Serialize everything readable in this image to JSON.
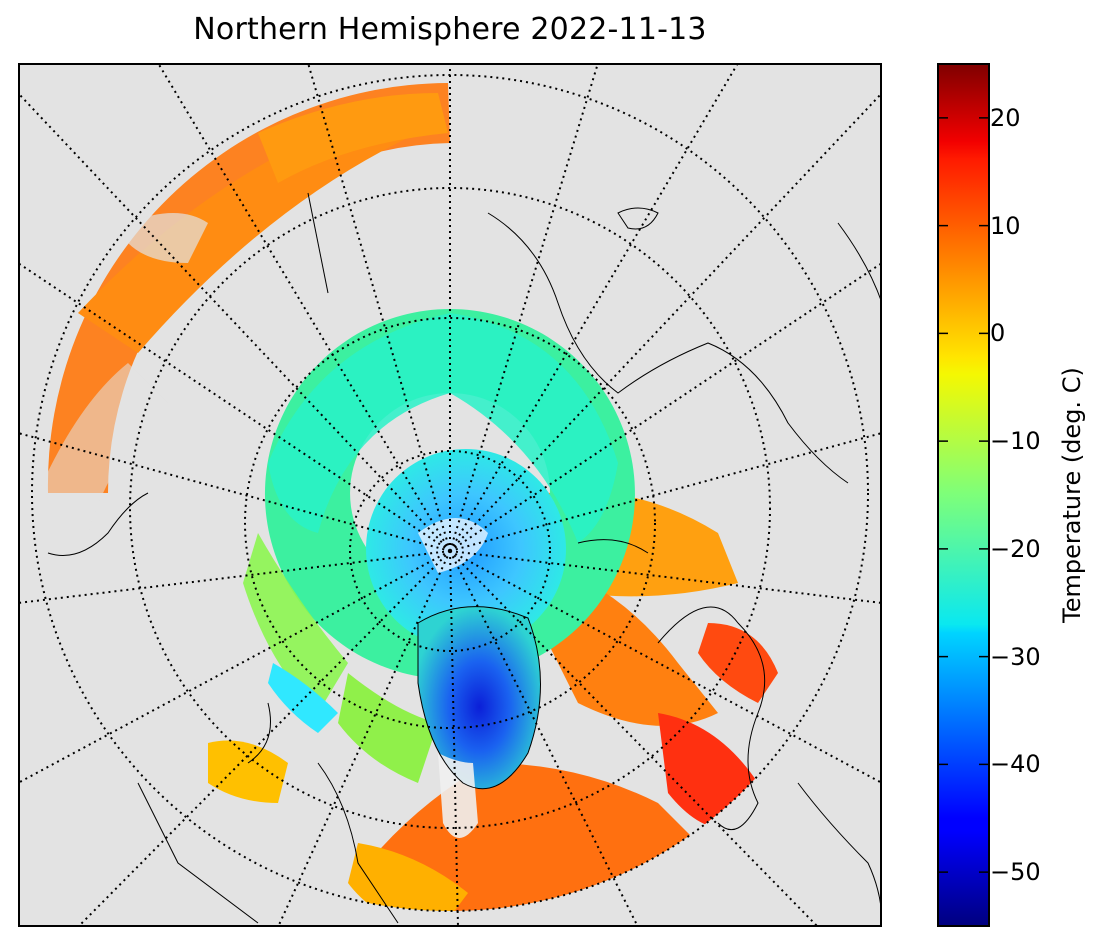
{
  "title": "Northern Hemisphere 2022-11-13",
  "map": {
    "projection": "north polar stereographic",
    "background_color": "#e3e3e3",
    "coastline_color": "#000000",
    "graticule_style": "dotted",
    "layer": "surface temperature",
    "pole_region_value": -30,
    "greenland_interior_value": -45
  },
  "colorbar": {
    "label": "Temperature (deg. C)",
    "colormap": "jet",
    "vmin": -55,
    "vmax": 25,
    "ticks": [
      {
        "value": 20,
        "label": "20"
      },
      {
        "value": 10,
        "label": "10"
      },
      {
        "value": 0,
        "label": "0"
      },
      {
        "value": -10,
        "label": "−10"
      },
      {
        "value": -20,
        "label": "−20"
      },
      {
        "value": -30,
        "label": "−30"
      },
      {
        "value": -40,
        "label": "−40"
      },
      {
        "value": -50,
        "label": "−50"
      }
    ]
  }
}
